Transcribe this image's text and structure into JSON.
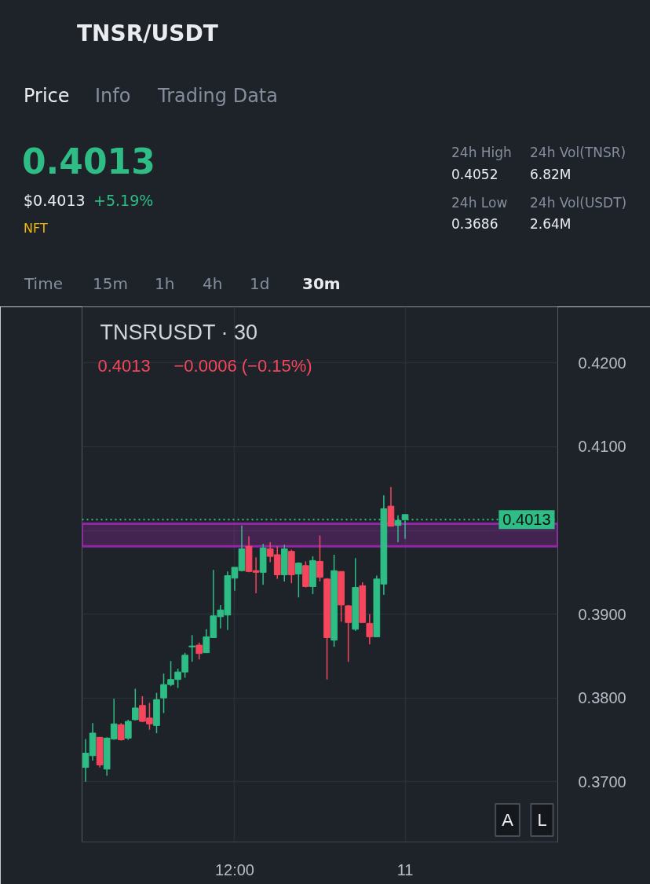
{
  "chart_data": {
    "type": "candlestick",
    "title": "TNSR/USDT",
    "subtitle": "TNSRUSDT · 30",
    "categories": [
      null,
      null,
      null,
      null,
      null,
      null,
      null,
      null,
      null,
      null,
      null,
      null,
      null,
      null,
      null,
      null,
      null,
      null,
      null,
      null,
      null,
      "12:00",
      null,
      null,
      null,
      null,
      null,
      null,
      null,
      null,
      null,
      null,
      null,
      null,
      null,
      null,
      null,
      null,
      null,
      null,
      null,
      null,
      null,
      null,
      null,
      "11",
      null,
      null,
      null,
      null,
      null,
      null,
      null,
      null,
      null,
      null,
      null,
      null,
      null,
      null,
      null,
      null,
      null,
      null,
      null,
      null,
      null
    ],
    "ohlc": [
      [
        0.3717,
        0.3751,
        0.37,
        0.3734
      ],
      [
        0.3731,
        0.377,
        0.3725,
        0.3758
      ],
      [
        0.3753,
        0.3753,
        0.3717,
        0.372
      ],
      [
        0.3715,
        0.3753,
        0.3707,
        0.3752
      ],
      [
        0.3751,
        0.3799,
        0.375,
        0.3769
      ],
      [
        0.3768,
        0.377,
        0.3749,
        0.375
      ],
      [
        0.3752,
        0.3774,
        0.375,
        0.3772
      ],
      [
        0.3774,
        0.3811,
        0.3773,
        0.3788
      ],
      [
        0.3791,
        0.3802,
        0.3771,
        0.3772
      ],
      [
        0.3776,
        0.3794,
        0.3762,
        0.3769
      ],
      [
        0.3767,
        0.3806,
        0.3758,
        0.3798
      ],
      [
        0.38,
        0.3829,
        0.3782,
        0.3816
      ],
      [
        0.3816,
        0.3844,
        0.3814,
        0.3822
      ],
      [
        0.3822,
        0.3835,
        0.3812,
        0.3831
      ],
      [
        0.3831,
        0.3854,
        0.3824,
        0.3851
      ],
      [
        0.3861,
        0.3875,
        0.3843,
        0.3862
      ],
      [
        0.3863,
        0.3866,
        0.3846,
        0.3853
      ],
      [
        0.3854,
        0.3882,
        0.3854,
        0.3873
      ],
      [
        0.3872,
        0.3953,
        0.3872,
        0.3898
      ],
      [
        0.3897,
        0.3911,
        0.3883,
        0.3905
      ],
      [
        0.3899,
        0.3951,
        0.3881,
        0.3946
      ],
      [
        0.3943,
        0.3956,
        0.3928,
        0.3956
      ],
      [
        0.3952,
        0.4006,
        0.3951,
        0.3978
      ],
      [
        0.3981,
        0.3993,
        0.395,
        0.3951
      ],
      [
        0.3952,
        0.3968,
        0.3925,
        0.395
      ],
      [
        0.395,
        0.3984,
        0.3935,
        0.3979
      ],
      [
        0.3978,
        0.3986,
        0.3962,
        0.3969
      ],
      [
        0.3971,
        0.3981,
        0.3942,
        0.3947
      ],
      [
        0.3947,
        0.3983,
        0.3939,
        0.3978
      ],
      [
        0.3975,
        0.3977,
        0.3937,
        0.3947
      ],
      [
        0.3948,
        0.3962,
        0.392,
        0.3961
      ],
      [
        0.3958,
        0.3963,
        0.3932,
        0.3933
      ],
      [
        0.3933,
        0.3969,
        0.3924,
        0.3964
      ],
      [
        0.3963,
        0.3994,
        0.3939,
        0.3944
      ],
      [
        0.3942,
        0.3943,
        0.3822,
        0.3872
      ],
      [
        0.3869,
        0.3971,
        0.3861,
        0.3952
      ],
      [
        0.3951,
        0.3951,
        0.3891,
        0.3911
      ],
      [
        0.391,
        0.3911,
        0.3843,
        0.389
      ],
      [
        0.3882,
        0.3967,
        0.388,
        0.3932
      ],
      [
        0.3934,
        0.3938,
        0.389,
        0.389
      ],
      [
        0.3889,
        0.39,
        0.3864,
        0.3873
      ],
      [
        0.3873,
        0.3946,
        0.3873,
        0.3942
      ],
      [
        0.3936,
        0.4042,
        0.3923,
        0.4026
      ],
      [
        0.4029,
        0.4052,
        0.4005,
        0.4005
      ],
      [
        0.4006,
        0.4018,
        0.3986,
        0.4012
      ],
      [
        0.4013,
        0.4019,
        0.399,
        0.4019
      ],
      null,
      null,
      null,
      null,
      null,
      null,
      null,
      null,
      null,
      null,
      null,
      null,
      null,
      null,
      null,
      null,
      null,
      null,
      null,
      null,
      null
    ],
    "colors": [
      "#2ebd85",
      "#2ebd85",
      "#f6465d",
      "#2ebd85",
      "#2ebd85",
      "#f6465d",
      "#2ebd85",
      "#2ebd85",
      "#f6465d",
      "#f6465d",
      "#2ebd85",
      "#2ebd85",
      "#2ebd85",
      "#2ebd85",
      "#2ebd85",
      "#2ebd85",
      "#f6465d",
      "#2ebd85",
      "#2ebd85",
      "#2ebd85",
      "#2ebd85",
      "#2ebd85",
      "#2ebd85",
      "#f6465d",
      "#f6465d",
      "#2ebd85",
      "#f6465d",
      "#f6465d",
      "#2ebd85",
      "#f6465d",
      "#2ebd85",
      "#f6465d",
      "#2ebd85",
      "#f6465d",
      "#f6465d",
      "#2ebd85",
      "#f6465d",
      "#f6465d",
      "#2ebd85",
      "#f6465d",
      "#f6465d",
      "#2ebd85",
      "#2ebd85",
      "#f6465d",
      "#2ebd85",
      "#2ebd85",
      null,
      null,
      null,
      null,
      null,
      null,
      null,
      null,
      null,
      null,
      null,
      null,
      null,
      null,
      null,
      null,
      null,
      null,
      null,
      null,
      null
    ],
    "ylim": [
      0.3628,
      0.4267
    ],
    "yticks": [
      {
        "value": 0.37,
        "label": "0.3700"
      },
      {
        "value": 0.38,
        "label": "0.3800"
      },
      {
        "value": 0.39,
        "label": "0.3900"
      },
      {
        "value": 0.4,
        "label": null
      },
      {
        "value": 0.41,
        "label": "0.4100"
      },
      {
        "value": 0.42,
        "label": "0.4200"
      }
    ],
    "grid": true,
    "ref_lines": [
      {
        "axis": "y",
        "value": 0.4013,
        "label": "0.4013",
        "color": "#2ebd85",
        "line_style": "dotted"
      }
    ],
    "bands": [
      {
        "axis": "y",
        "from": 0.3981,
        "to": 0.4008,
        "color": "#9c27b0"
      }
    ],
    "annotations": [
      "Price",
      "Info",
      "Trading Data",
      "0.4013",
      "$0.4013",
      "+5.19%",
      "NFT",
      "24h High",
      "0.4052",
      "24h Low",
      "0.3686",
      "24h Vol(TNSR)",
      "6.82M",
      "24h Vol(USDT)",
      "2.64M",
      "Time",
      "15m",
      "1h",
      "4h",
      "1d",
      "30m",
      "0.4013",
      "−0.0006 (−0.15%)",
      "A",
      "L"
    ]
  }
}
